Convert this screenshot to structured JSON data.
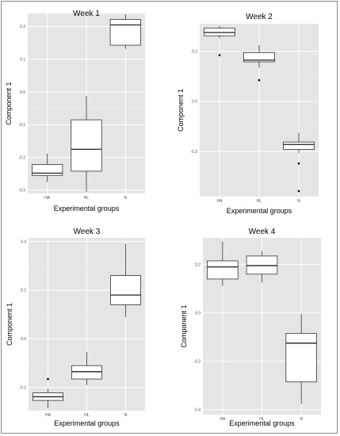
{
  "chart_data": [
    {
      "type": "box",
      "title": "Week 1",
      "xlabel": "Experimental groups",
      "ylabel": "Component 1",
      "categories": [
        "HA",
        "HL",
        "N"
      ],
      "ylim": [
        -0.31,
        0.24
      ],
      "yticks": [
        -0.3,
        -0.2,
        -0.1,
        0.0,
        0.1,
        0.2
      ],
      "ytick_labels": [
        "-0.3",
        "-0.2",
        "-0.1",
        "0.0",
        "0.1",
        "0.2"
      ],
      "boxes": [
        {
          "category": "HA",
          "whisker_low": -0.275,
          "q1": -0.255,
          "median": -0.248,
          "q3": -0.222,
          "whisker_high": -0.188,
          "outliers": []
        },
        {
          "category": "HL",
          "whisker_low": -0.305,
          "q1": -0.242,
          "median": -0.175,
          "q3": -0.085,
          "whisker_high": -0.012,
          "outliers": []
        },
        {
          "category": "N",
          "whisker_low": 0.132,
          "q1": 0.143,
          "median": 0.205,
          "q3": 0.222,
          "whisker_high": 0.238,
          "outliers": []
        }
      ],
      "grid": true
    },
    {
      "type": "box",
      "title": "Week 2",
      "xlabel": "Experimental groups",
      "ylabel": "Component 1",
      "categories": [
        "HA",
        "HL",
        "N"
      ],
      "ylim": [
        -0.38,
        0.31
      ],
      "yticks": [
        -0.2,
        0.0,
        0.2
      ],
      "ytick_labels": [
        "-0.2",
        "0.0",
        "0.2"
      ],
      "boxes": [
        {
          "category": "HA",
          "whisker_low": 0.252,
          "q1": 0.262,
          "median": 0.275,
          "q3": 0.293,
          "whisker_high": 0.302,
          "outliers": [
            0.185
          ]
        },
        {
          "category": "HL",
          "whisker_low": 0.135,
          "q1": 0.158,
          "median": 0.165,
          "q3": 0.195,
          "whisker_high": 0.225,
          "outliers": [
            0.085
          ]
        },
        {
          "category": "N",
          "whisker_low": -0.205,
          "q1": -0.192,
          "median": -0.172,
          "q3": -0.162,
          "whisker_high": -0.125,
          "outliers": [
            -0.248,
            -0.358
          ]
        }
      ],
      "grid": true
    },
    {
      "type": "box",
      "title": "Week 3",
      "xlabel": "Experimental groups",
      "ylabel": "Component 1",
      "categories": [
        "HA",
        "HL",
        "N"
      ],
      "ylim": [
        -0.295,
        0.415
      ],
      "yticks": [
        -0.2,
        0.0,
        0.2,
        0.4
      ],
      "ytick_labels": [
        "-0.2",
        "0.0",
        "0.2",
        "0.4"
      ],
      "boxes": [
        {
          "category": "HA",
          "whisker_low": -0.285,
          "q1": -0.253,
          "median": -0.238,
          "q3": -0.222,
          "whisker_high": -0.205,
          "outliers": [
            -0.165
          ]
        },
        {
          "category": "HL",
          "whisker_low": -0.19,
          "q1": -0.165,
          "median": -0.135,
          "q3": -0.11,
          "whisker_high": -0.055,
          "outliers": []
        },
        {
          "category": "N",
          "whisker_low": 0.09,
          "q1": 0.14,
          "median": 0.18,
          "q3": 0.26,
          "whisker_high": 0.39,
          "outliers": []
        }
      ],
      "grid": true
    },
    {
      "type": "box",
      "title": "Week 4",
      "xlabel": "Experimental groups",
      "ylabel": "Component 1",
      "categories": [
        "HA",
        "HL",
        "N"
      ],
      "ylim": [
        -0.42,
        0.31
      ],
      "yticks": [
        -0.4,
        -0.2,
        0.0,
        0.2
      ],
      "ytick_labels": [
        "-0.4",
        "-0.2",
        "0.0",
        "0.2"
      ],
      "boxes": [
        {
          "category": "HA",
          "whisker_low": 0.112,
          "q1": 0.14,
          "median": 0.19,
          "q3": 0.215,
          "whisker_high": 0.295,
          "outliers": []
        },
        {
          "category": "HL",
          "whisker_low": 0.125,
          "q1": 0.16,
          "median": 0.195,
          "q3": 0.235,
          "whisker_high": 0.255,
          "outliers": []
        },
        {
          "category": "N",
          "whisker_low": -0.375,
          "q1": -0.285,
          "median": -0.125,
          "q3": -0.085,
          "whisker_high": -0.005,
          "outliers": []
        }
      ],
      "grid": true
    }
  ],
  "colors": {
    "panel_background": "#e5e5e5",
    "grid_major": "#ffffff",
    "grid_minor": "#f2f2f2",
    "box_fill": "#ffffff",
    "box_stroke": "#333333",
    "outlier": "#000000",
    "frame": "#8a8a8a"
  }
}
